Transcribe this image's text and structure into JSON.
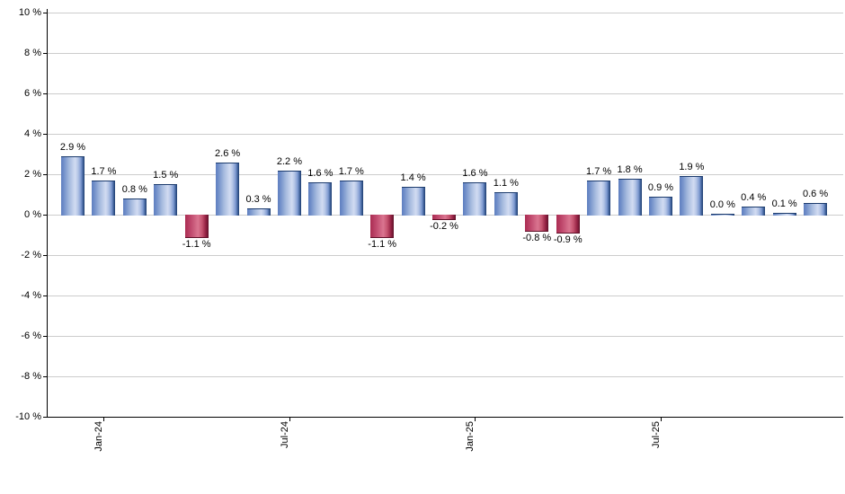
{
  "chart_data": {
    "type": "bar",
    "title": "",
    "xlabel": "",
    "ylabel": "",
    "grid": true,
    "legend": false,
    "background": "#ffffff",
    "ylim": [
      -10,
      10
    ],
    "y_tick_step": 2,
    "y_tick_labels": [
      "10 %",
      "8 %",
      "6 %",
      "4 %",
      "2 %",
      "0 %",
      "-2 %",
      "-4 %",
      "-6 %",
      "-8 %",
      "-10 %"
    ],
    "x_tick_labels": [
      {
        "bar_index": 1,
        "label": "Jan-24"
      },
      {
        "bar_index": 7,
        "label": "Jul-24"
      },
      {
        "bar_index": 13,
        "label": "Jan-25"
      },
      {
        "bar_index": 19,
        "label": "Jul-25"
      }
    ],
    "values": [
      2.9,
      1.7,
      0.8,
      1.5,
      -1.1,
      2.6,
      0.3,
      2.2,
      1.6,
      1.7,
      -1.1,
      1.4,
      -0.2,
      1.6,
      1.1,
      -0.8,
      -0.9,
      1.7,
      1.8,
      0.9,
      1.9,
      0.0,
      0.4,
      0.1,
      0.6
    ],
    "value_labels": [
      "2.9 %",
      "1.7 %",
      "0.8 %",
      "1.5 %",
      "-1.1 %",
      "2.6 %",
      "0.3 %",
      "2.2 %",
      "1.6 %",
      "1.7 %",
      "-1.1 %",
      "1.4 %",
      "-0.2 %",
      "1.6 %",
      "1.1 %",
      "-0.8 %",
      "-0.9 %",
      "1.7 %",
      "1.8 %",
      "0.9 %",
      "1.9 %",
      "0.0 %",
      "0.4 %",
      "0.1 %",
      "0.6 %"
    ],
    "colors": {
      "positive_bar": "#8fa8d9",
      "positive_bar_border": "#1c3b6d",
      "negative_bar": "#c04a6e",
      "negative_bar_border": "#5f1129",
      "gridline": "#cccccc",
      "axis": "#000000",
      "text": "#000000",
      "background": "#ffffff"
    }
  }
}
